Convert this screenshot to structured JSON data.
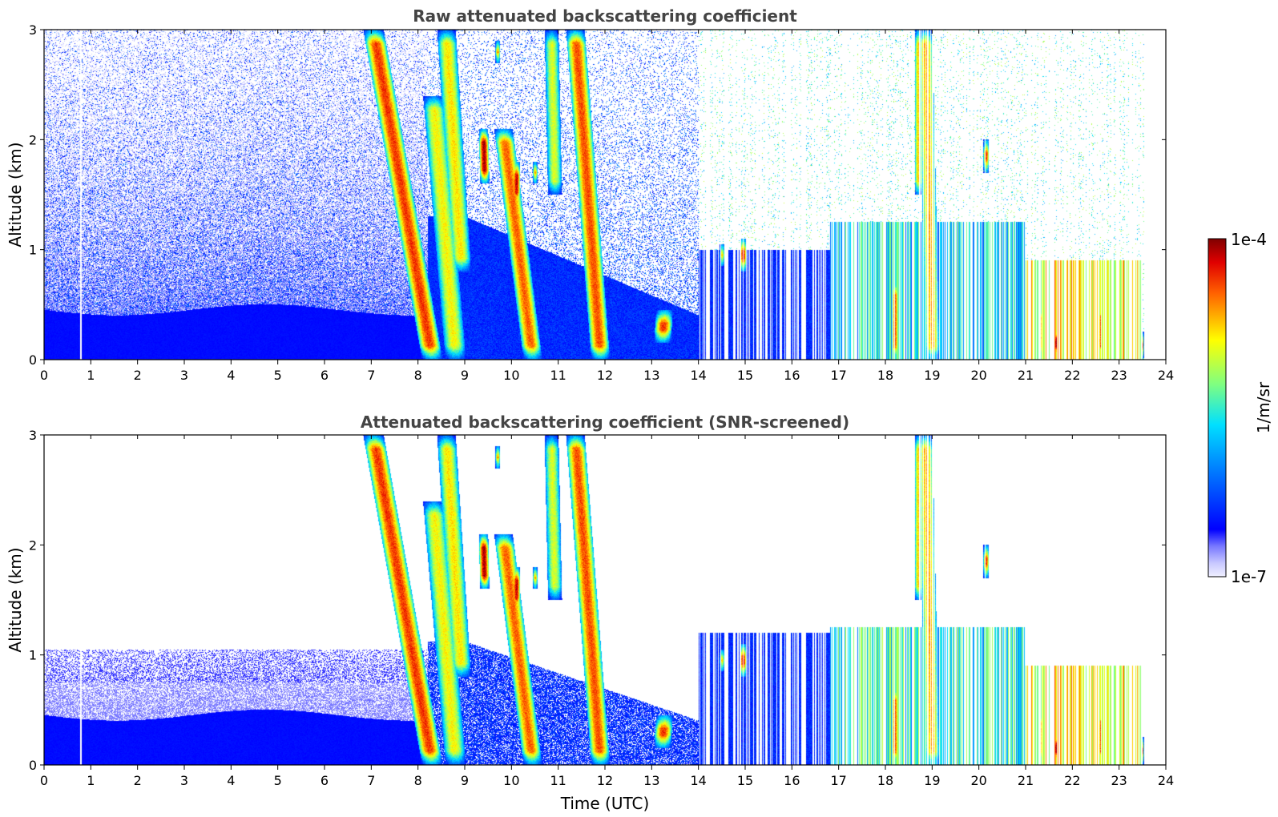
{
  "chart_data": [
    {
      "type": "heatmap",
      "title": "Raw attenuated backscattering coefficient",
      "ylabel": "Altitude (km)",
      "xlabel": "",
      "xlim": [
        0,
        24
      ],
      "ylim": [
        0,
        3
      ],
      "x_ticks": [
        "0",
        "1",
        "2",
        "3",
        "4",
        "5",
        "6",
        "7",
        "8",
        "9",
        "10",
        "11",
        "12",
        "13",
        "14",
        "15",
        "16",
        "17",
        "18",
        "19",
        "20",
        "21",
        "22",
        "23",
        "24"
      ],
      "y_ticks": [
        "0",
        "1",
        "2",
        "3"
      ],
      "grid": false,
      "screened": false
    },
    {
      "type": "heatmap",
      "title": "Attenuated backscattering coefficient (SNR-screened)",
      "ylabel": "Altitude (km)",
      "xlabel": "Time (UTC)",
      "xlim": [
        0,
        24
      ],
      "ylim": [
        0,
        3
      ],
      "x_ticks": [
        "0",
        "1",
        "2",
        "3",
        "4",
        "5",
        "6",
        "7",
        "8",
        "9",
        "10",
        "11",
        "12",
        "13",
        "14",
        "15",
        "16",
        "17",
        "18",
        "19",
        "20",
        "21",
        "22",
        "23",
        "24"
      ],
      "y_ticks": [
        "0",
        "1",
        "2",
        "3"
      ],
      "grid": false,
      "screened": true
    }
  ],
  "colorbar": {
    "label": "1/m/sr",
    "max_label": "1e-4",
    "min_label": "1e-7",
    "scale": "log",
    "colormap": "jet"
  }
}
